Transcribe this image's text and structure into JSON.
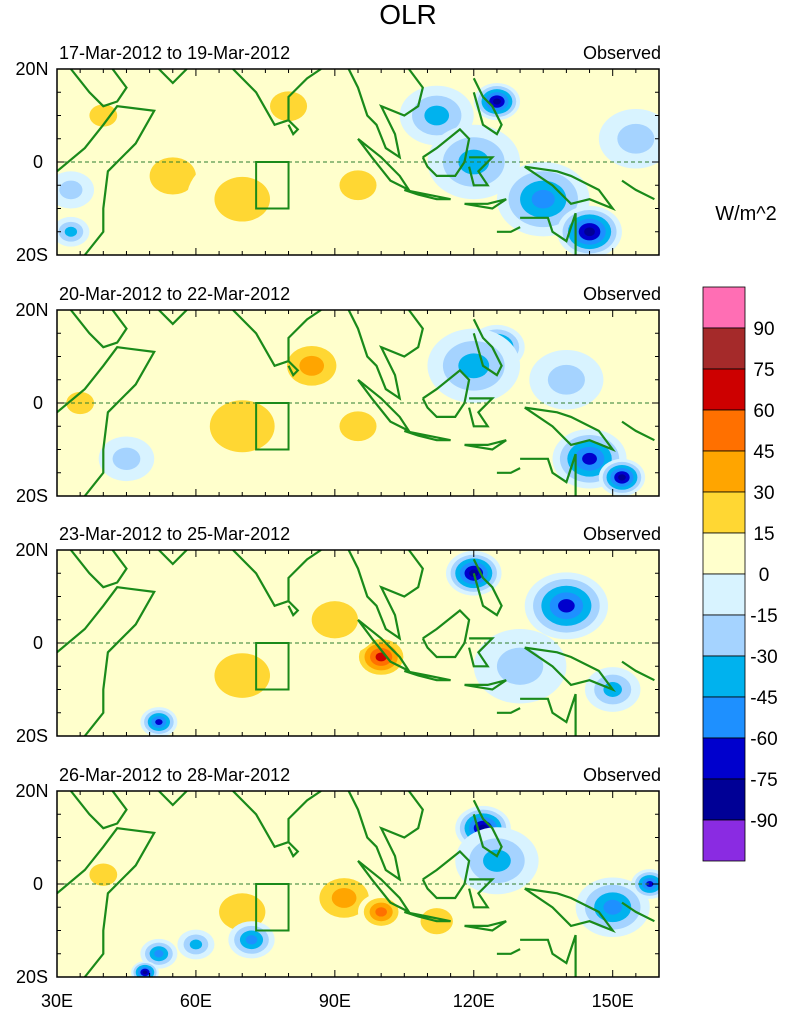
{
  "chart_data": {
    "type": "heatmap",
    "title": "OLR",
    "units_label": "W/m^2",
    "x_ticks": [
      {
        "value": 30,
        "label": "30E"
      },
      {
        "value": 60,
        "label": "60E"
      },
      {
        "value": 90,
        "label": "90E"
      },
      {
        "value": 120,
        "label": "120E"
      },
      {
        "value": 150,
        "label": "150E"
      }
    ],
    "y_ticks": [
      {
        "value": 20,
        "label": "20N"
      },
      {
        "value": 0,
        "label": "0"
      },
      {
        "value": -20,
        "label": "20S"
      }
    ],
    "xlim": [
      30,
      160
    ],
    "ylim": [
      -20,
      20
    ],
    "colorbar": {
      "levels": [
        "90",
        "75",
        "60",
        "45",
        "30",
        "15",
        "0",
        "-15",
        "-30",
        "-45",
        "-60",
        "-75",
        "-90"
      ],
      "colors": [
        "#ff6eb4",
        "#a52a2a",
        "#cd0000",
        "#ff7000",
        "#ffa500",
        "#ffd733",
        "#ffffcc",
        "#d8f3ff",
        "#a5d3ff",
        "#00b2ee",
        "#1e90ff",
        "#0000cd",
        "#000096",
        "#8a2be2"
      ]
    },
    "panels": [
      {
        "period": "17-Mar-2012 to 19-Mar-2012",
        "label": "Observed",
        "anomalies": [
          {
            "lon": 40,
            "lat": 10,
            "r": 6,
            "value": 25
          },
          {
            "lon": 33,
            "lat": -6,
            "r": 5,
            "value": -30
          },
          {
            "lon": 33,
            "lat": -15,
            "r": 4,
            "value": -45
          },
          {
            "lon": 55,
            "lat": -3,
            "r": 10,
            "value": 20
          },
          {
            "lon": 70,
            "lat": -8,
            "r": 12,
            "value": 25
          },
          {
            "lon": 80,
            "lat": 12,
            "r": 8,
            "value": 25
          },
          {
            "lon": 95,
            "lat": -5,
            "r": 8,
            "value": 20
          },
          {
            "lon": 112,
            "lat": 10,
            "r": 8,
            "value": -40
          },
          {
            "lon": 125,
            "lat": 13,
            "r": 5,
            "value": -85
          },
          {
            "lon": 120,
            "lat": 0,
            "r": 10,
            "value": -40
          },
          {
            "lon": 135,
            "lat": -8,
            "r": 10,
            "value": -60
          },
          {
            "lon": 145,
            "lat": -15,
            "r": 7,
            "value": -85
          },
          {
            "lon": 155,
            "lat": 5,
            "r": 8,
            "value": -20
          }
        ]
      },
      {
        "period": "20-Mar-2012 to 22-Mar-2012",
        "label": "Observed",
        "anomalies": [
          {
            "lon": 35,
            "lat": 0,
            "r": 6,
            "value": 25
          },
          {
            "lon": 45,
            "lat": -12,
            "r": 6,
            "value": -20
          },
          {
            "lon": 70,
            "lat": -5,
            "r": 14,
            "value": 30
          },
          {
            "lon": 85,
            "lat": 8,
            "r": 8,
            "value": 35
          },
          {
            "lon": 95,
            "lat": -5,
            "r": 8,
            "value": 30
          },
          {
            "lon": 125,
            "lat": 12,
            "r": 6,
            "value": -70
          },
          {
            "lon": 120,
            "lat": 8,
            "r": 10,
            "value": -35
          },
          {
            "lon": 145,
            "lat": -12,
            "r": 8,
            "value": -70
          },
          {
            "lon": 152,
            "lat": -16,
            "r": 5,
            "value": -90
          },
          {
            "lon": 140,
            "lat": 5,
            "r": 8,
            "value": -25
          }
        ]
      },
      {
        "period": "23-Mar-2012 to 25-Mar-2012",
        "label": "Observed",
        "anomalies": [
          {
            "lon": 70,
            "lat": -7,
            "r": 12,
            "value": 30
          },
          {
            "lon": 100,
            "lat": -3,
            "r": 6,
            "value": 65
          },
          {
            "lon": 90,
            "lat": 5,
            "r": 10,
            "value": 25
          },
          {
            "lon": 52,
            "lat": -17,
            "r": 4,
            "value": -75
          },
          {
            "lon": 120,
            "lat": 15,
            "r": 6,
            "value": -80
          },
          {
            "lon": 140,
            "lat": 8,
            "r": 9,
            "value": -65
          },
          {
            "lon": 150,
            "lat": -10,
            "r": 6,
            "value": -45
          },
          {
            "lon": 130,
            "lat": -5,
            "r": 10,
            "value": -25
          }
        ]
      },
      {
        "period": "26-Mar-2012 to 28-Mar-2012",
        "label": "Observed",
        "anomalies": [
          {
            "lon": 40,
            "lat": 2,
            "r": 6,
            "value": 25
          },
          {
            "lon": 70,
            "lat": -6,
            "r": 10,
            "value": 25
          },
          {
            "lon": 92,
            "lat": -3,
            "r": 8,
            "value": 35
          },
          {
            "lon": 100,
            "lat": -6,
            "r": 5,
            "value": 55
          },
          {
            "lon": 112,
            "lat": -8,
            "r": 7,
            "value": 30
          },
          {
            "lon": 52,
            "lat": -15,
            "r": 4,
            "value": -55
          },
          {
            "lon": 60,
            "lat": -13,
            "r": 4,
            "value": -45
          },
          {
            "lon": 72,
            "lat": -12,
            "r": 5,
            "value": -55
          },
          {
            "lon": 49,
            "lat": -19,
            "r": 3,
            "value": -80
          },
          {
            "lon": 122,
            "lat": 12,
            "r": 6,
            "value": -80
          },
          {
            "lon": 125,
            "lat": 5,
            "r": 9,
            "value": -35
          },
          {
            "lon": 150,
            "lat": -5,
            "r": 8,
            "value": -55
          },
          {
            "lon": 158,
            "lat": 0,
            "r": 4,
            "value": -75
          }
        ]
      }
    ]
  }
}
